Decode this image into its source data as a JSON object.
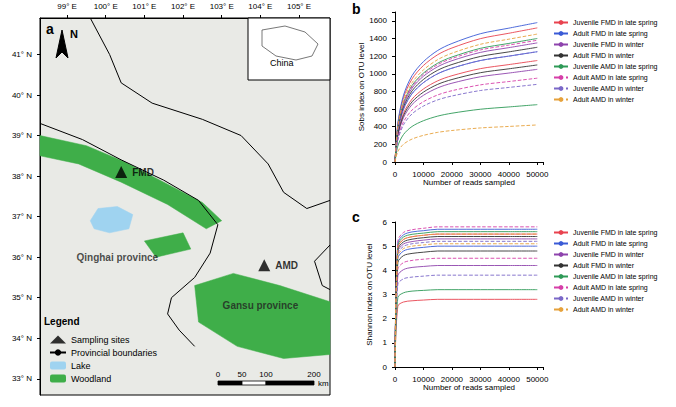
{
  "chart_data": [
    {
      "type": "map",
      "panel": "a",
      "xlim": [
        98.3,
        105.8
      ],
      "ylim": [
        32.6,
        41.9
      ],
      "xticks": [
        {
          "value": 99,
          "label": "99° E"
        },
        {
          "value": 100,
          "label": "100° E"
        },
        {
          "value": 101,
          "label": "101° E"
        },
        {
          "value": 102,
          "label": "102° E"
        },
        {
          "value": 103,
          "label": "103° E"
        },
        {
          "value": 104,
          "label": "104° E"
        },
        {
          "value": 105,
          "label": "105° E"
        }
      ],
      "yticks": [
        {
          "value": 33,
          "label": "33° N"
        },
        {
          "value": 34,
          "label": "34° N"
        },
        {
          "value": 35,
          "label": "35° N"
        },
        {
          "value": 36,
          "label": "36° N"
        },
        {
          "value": 37,
          "label": "37° N"
        },
        {
          "value": 38,
          "label": "38° N"
        },
        {
          "value": 39,
          "label": "39° N"
        },
        {
          "value": 40,
          "label": "40° N"
        },
        {
          "value": 41,
          "label": "41° N"
        }
      ],
      "grid": false,
      "legend": "bottom-left",
      "legend_title": "Legend",
      "series": [
        {
          "name": "Sampling sites",
          "type": "scatter",
          "marker": "triangle",
          "color": "#000000",
          "x": [
            100.4,
            104.1
          ],
          "y": [
            38.1,
            35.8
          ],
          "labels": [
            "FMD",
            "AMD"
          ]
        },
        {
          "name": "Provincial boundaries",
          "type": "line",
          "color": "#000000",
          "line_style": "solid",
          "lines": [
            [
              [
                98.3,
                39.3
              ],
              [
                99.4,
                38.9
              ],
              [
                100.4,
                38.4
              ],
              [
                101.5,
                37.9
              ],
              [
                102.4,
                37.4
              ],
              [
                102.9,
                36.8
              ],
              [
                102.7,
                36.1
              ],
              [
                102.3,
                35.5
              ],
              [
                101.7,
                35.0
              ],
              [
                101.6,
                34.6
              ],
              [
                101.9,
                34.2
              ],
              [
                102.3,
                33.8
              ]
            ],
            [
              [
                99.6,
                41.9
              ],
              [
                100.1,
                41.0
              ],
              [
                100.4,
                40.3
              ],
              [
                101.2,
                39.8
              ],
              [
                102.5,
                39.4
              ],
              [
                103.5,
                39.0
              ],
              [
                104.2,
                38.3
              ],
              [
                104.6,
                37.6
              ],
              [
                105.2,
                37.2
              ],
              [
                105.8,
                37.4
              ]
            ],
            [
              [
                105.8,
                36.3
              ],
              [
                105.4,
                35.9
              ],
              [
                105.6,
                35.3
              ],
              [
                105.8,
                35.2
              ]
            ]
          ]
        },
        {
          "name": "Lake",
          "type": "polygon",
          "color": "#9fd3f0",
          "polygons": [
            [
              [
                99.6,
                36.9
              ],
              [
                99.8,
                37.2
              ],
              [
                100.3,
                37.25
              ],
              [
                100.7,
                37.05
              ],
              [
                100.6,
                36.7
              ],
              [
                100.1,
                36.6
              ],
              [
                99.7,
                36.7
              ],
              [
                99.6,
                36.9
              ]
            ]
          ]
        },
        {
          "name": "Woodland",
          "type": "polygon",
          "color": "#3fae49",
          "polygons": [
            [
              [
                98.3,
                39.0
              ],
              [
                99.5,
                38.75
              ],
              [
                100.5,
                38.35
              ],
              [
                101.5,
                37.85
              ],
              [
                102.5,
                37.35
              ],
              [
                103.0,
                36.9
              ],
              [
                102.6,
                36.7
              ],
              [
                101.6,
                37.3
              ],
              [
                100.4,
                37.85
              ],
              [
                99.3,
                38.3
              ],
              [
                98.3,
                38.5
              ]
            ],
            [
              [
                102.3,
                35.3
              ],
              [
                103.3,
                35.6
              ],
              [
                104.5,
                35.3
              ],
              [
                105.8,
                34.9
              ],
              [
                105.8,
                33.6
              ],
              [
                104.6,
                33.5
              ],
              [
                103.4,
                33.8
              ],
              [
                102.4,
                34.4
              ]
            ],
            [
              [
                101.0,
                36.4
              ],
              [
                102.0,
                36.6
              ],
              [
                102.2,
                36.2
              ],
              [
                101.3,
                36.0
              ]
            ]
          ]
        }
      ],
      "annotations": [
        {
          "text": "Qinghai province",
          "x": 100.3,
          "y": 36.0
        },
        {
          "text": "Gansu province",
          "x": 104.0,
          "y": 34.8
        }
      ],
      "inset_label": "China",
      "north_label": "N",
      "scale_bar": {
        "ticks": [
          0,
          50,
          100,
          200
        ],
        "unit": "km"
      }
    },
    {
      "type": "line",
      "panel": "b",
      "x_label": "Number of reads sampled",
      "y_label": "Sobs index on OTU level",
      "xlim": [
        0,
        52000
      ],
      "ylim": [
        0,
        1700
      ],
      "xticks": [
        0,
        10000,
        20000,
        30000,
        40000,
        50000
      ],
      "yticks": [
        0,
        200,
        400,
        600,
        800,
        1000,
        1200,
        1400,
        1600
      ],
      "grid": false,
      "legend": "right",
      "x": [
        0,
        1000,
        3000,
        6000,
        10000,
        15000,
        20000,
        30000,
        40000,
        50000
      ],
      "series": [
        {
          "name": "Juvenile FMD in late spring",
          "color": "#e8434f",
          "line_style": "solid",
          "values": [
            0,
            426,
            730,
            942,
            1094,
            1216,
            1292,
            1398,
            1459,
            1520
          ]
        },
        {
          "name": "Juvenile FMD in late spring",
          "color": "#e8434f",
          "line_style": "solid",
          "values": [
            0,
            322,
            552,
            713,
            828,
            920,
            978,
            1058,
            1104,
            1150
          ]
        },
        {
          "name": "Adult FMD in late spring",
          "color": "#3b5bd6",
          "line_style": "solid",
          "values": [
            0,
            442,
            758,
            980,
            1138,
            1264,
            1343,
            1454,
            1517,
            1580
          ]
        },
        {
          "name": "Adult FMD in late spring",
          "color": "#3b5bd6",
          "line_style": "solid",
          "values": [
            0,
            350,
            600,
            775,
            900,
            1000,
            1063,
            1150,
            1200,
            1250
          ]
        },
        {
          "name": "Juvenile FMD in winter",
          "color": "#8e44ad",
          "line_style": "solid",
          "values": [
            0,
            378,
            648,
            837,
            972,
            1080,
            1148,
            1242,
            1296,
            1350
          ]
        },
        {
          "name": "Juvenile FMD in winter",
          "color": "#8e44ad",
          "line_style": "solid",
          "values": [
            0,
            294,
            504,
            651,
            756,
            840,
            893,
            966,
            1008,
            1050
          ]
        },
        {
          "name": "Adult FMD in winter",
          "color": "#333333",
          "line_style": "solid",
          "values": [
            0,
            364,
            624,
            806,
            936,
            1040,
            1105,
            1196,
            1248,
            1300
          ]
        },
        {
          "name": "Adult FMD in winter",
          "color": "#333333",
          "line_style": "solid",
          "values": [
            0,
            308,
            528,
            682,
            792,
            880,
            935,
            1012,
            1056,
            1100
          ]
        },
        {
          "name": "Juvenile AMD in late spring",
          "color": "#2e9a57",
          "line_style": "solid",
          "values": [
            0,
            392,
            672,
            868,
            1008,
            1120,
            1190,
            1288,
            1344,
            1400
          ]
        },
        {
          "name": "Juvenile AMD in late spring",
          "color": "#2e9a57",
          "line_style": "solid",
          "values": [
            0,
            182,
            312,
            403,
            468,
            520,
            553,
            598,
            624,
            650
          ]
        },
        {
          "name": "Adult AMD in late spring",
          "color": "#d63fa8",
          "line_style": "dashed",
          "values": [
            0,
            386,
            662,
            856,
            994,
            1104,
            1173,
            1270,
            1325,
            1380
          ]
        },
        {
          "name": "Adult AMD in late spring",
          "color": "#d63fa8",
          "line_style": "dashed",
          "values": [
            0,
            266,
            456,
            589,
            684,
            760,
            808,
            874,
            912,
            950
          ]
        },
        {
          "name": "Juvenile AMD in winter",
          "color": "#7b68c8",
          "line_style": "dashed",
          "values": [
            0,
            350,
            600,
            775,
            900,
            1000,
            1063,
            1150,
            1200,
            1250
          ]
        },
        {
          "name": "Juvenile AMD in winter",
          "color": "#7b68c8",
          "line_style": "dashed",
          "values": [
            0,
            246,
            422,
            546,
            634,
            704,
            748,
            810,
            845,
            880
          ]
        },
        {
          "name": "Adult AMD in winter",
          "color": "#e6a23c",
          "line_style": "dashed",
          "values": [
            0,
            406,
            696,
            899,
            1044,
            1160,
            1233,
            1334,
            1392,
            1450
          ]
        },
        {
          "name": "Adult AMD in winter",
          "color": "#e6a23c",
          "line_style": "dashed",
          "values": [
            0,
            118,
            202,
            260,
            302,
            336,
            357,
            386,
            403,
            420
          ]
        }
      ]
    },
    {
      "type": "line",
      "panel": "c",
      "x_label": "Number of reads sampled",
      "y_label": "Shannon index on OTU level",
      "xlim": [
        0,
        52000
      ],
      "ylim": [
        0,
        6
      ],
      "xticks": [
        0,
        10000,
        20000,
        30000,
        40000,
        50000
      ],
      "yticks": [
        0,
        1,
        2,
        3,
        4,
        5,
        6
      ],
      "grid": false,
      "legend": "right",
      "x": [
        0,
        1000,
        3000,
        6000,
        10000,
        15000,
        20000,
        30000,
        40000,
        50000
      ],
      "series": [
        {
          "name": "Juvenile FMD in late spring",
          "color": "#e8434f",
          "line_style": "solid",
          "values": [
            0,
            4.95,
            5.28,
            5.39,
            5.45,
            5.5,
            5.5,
            5.5,
            5.5,
            5.5
          ]
        },
        {
          "name": "Juvenile FMD in late spring",
          "color": "#e8434f",
          "line_style": "solid",
          "values": [
            0,
            2.52,
            2.69,
            2.74,
            2.77,
            2.8,
            2.8,
            2.8,
            2.8,
            2.8
          ]
        },
        {
          "name": "Adult FMD in late spring",
          "color": "#3b5bd6",
          "line_style": "solid",
          "values": [
            0,
            5.13,
            5.47,
            5.59,
            5.64,
            5.7,
            5.7,
            5.7,
            5.7,
            5.7
          ]
        },
        {
          "name": "Adult FMD in late spring",
          "color": "#3b5bd6",
          "line_style": "solid",
          "values": [
            0,
            4.5,
            4.8,
            4.9,
            4.95,
            5.0,
            5.0,
            5.0,
            5.0,
            5.0
          ]
        },
        {
          "name": "Juvenile FMD in winter",
          "color": "#8e44ad",
          "line_style": "solid",
          "values": [
            0,
            4.77,
            5.09,
            5.19,
            5.25,
            5.3,
            5.3,
            5.3,
            5.3,
            5.3
          ]
        },
        {
          "name": "Juvenile FMD in winter",
          "color": "#8e44ad",
          "line_style": "solid",
          "values": [
            0,
            3.78,
            4.03,
            4.12,
            4.16,
            4.2,
            4.2,
            4.2,
            4.2,
            4.2
          ]
        },
        {
          "name": "Adult FMD in winter",
          "color": "#333333",
          "line_style": "solid",
          "values": [
            0,
            4.86,
            5.18,
            5.29,
            5.35,
            5.4,
            5.4,
            5.4,
            5.4,
            5.4
          ]
        },
        {
          "name": "Adult FMD in winter",
          "color": "#333333",
          "line_style": "solid",
          "values": [
            0,
            4.32,
            4.61,
            4.7,
            4.75,
            4.8,
            4.8,
            4.8,
            4.8,
            4.8
          ]
        },
        {
          "name": "Juvenile AMD in late spring",
          "color": "#2e9a57",
          "line_style": "solid",
          "values": [
            0,
            5.04,
            5.38,
            5.49,
            5.54,
            5.6,
            5.6,
            5.6,
            5.6,
            5.6
          ]
        },
        {
          "name": "Juvenile AMD in late spring",
          "color": "#2e9a57",
          "line_style": "solid",
          "values": [
            0,
            2.88,
            3.07,
            3.14,
            3.17,
            3.2,
            3.2,
            3.2,
            3.2,
            3.2
          ]
        },
        {
          "name": "Adult AMD in late spring",
          "color": "#d63fa8",
          "line_style": "dashed",
          "values": [
            0,
            5.22,
            5.57,
            5.68,
            5.74,
            5.8,
            5.8,
            5.8,
            5.8,
            5.8
          ]
        },
        {
          "name": "Adult AMD in late spring",
          "color": "#d63fa8",
          "line_style": "dashed",
          "values": [
            0,
            4.05,
            4.32,
            4.41,
            4.46,
            4.5,
            4.5,
            4.5,
            4.5,
            4.5
          ]
        },
        {
          "name": "Juvenile AMD in winter",
          "color": "#7b68c8",
          "line_style": "dashed",
          "values": [
            0,
            4.68,
            4.99,
            5.1,
            5.15,
            5.2,
            5.2,
            5.2,
            5.2,
            5.2
          ]
        },
        {
          "name": "Juvenile AMD in winter",
          "color": "#7b68c8",
          "line_style": "dashed",
          "values": [
            0,
            3.42,
            3.65,
            3.72,
            3.76,
            3.8,
            3.8,
            3.8,
            3.8,
            3.8
          ]
        },
        {
          "name": "Adult AMD in winter",
          "color": "#e6a23c",
          "line_style": "dashed",
          "values": [
            0,
            4.95,
            5.28,
            5.39,
            5.45,
            5.5,
            5.5,
            5.5,
            5.5,
            5.5
          ]
        },
        {
          "name": "Adult AMD in winter",
          "color": "#e6a23c",
          "line_style": "dashed",
          "values": [
            0,
            4.59,
            4.9,
            5.0,
            5.05,
            5.1,
            5.1,
            5.1,
            5.1,
            5.1
          ]
        }
      ]
    }
  ]
}
